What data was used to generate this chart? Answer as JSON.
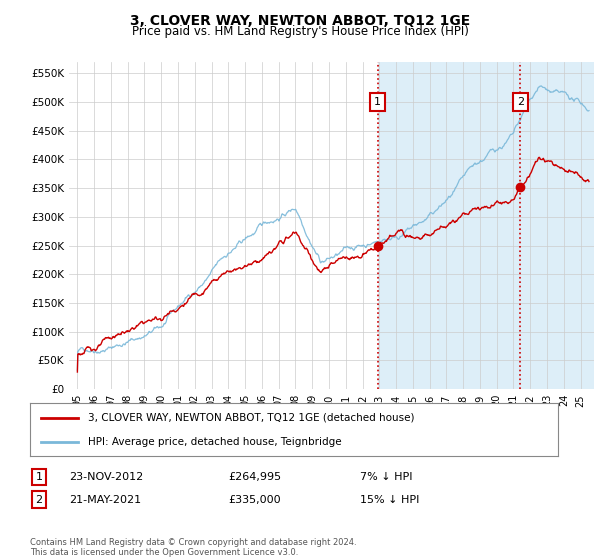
{
  "title": "3, CLOVER WAY, NEWTON ABBOT, TQ12 1GE",
  "subtitle": "Price paid vs. HM Land Registry's House Price Index (HPI)",
  "legend_line1": "3, CLOVER WAY, NEWTON ABBOT, TQ12 1GE (detached house)",
  "legend_line2": "HPI: Average price, detached house, Teignbridge",
  "annotation1_label": "1",
  "annotation1_date": "23-NOV-2012",
  "annotation1_price": "£264,995",
  "annotation1_hpi": "7% ↓ HPI",
  "annotation1_year": 2012.9,
  "annotation1_value": 264995,
  "annotation2_label": "2",
  "annotation2_date": "21-MAY-2021",
  "annotation2_price": "£335,000",
  "annotation2_hpi": "15% ↓ HPI",
  "annotation2_year": 2021.4,
  "annotation2_value": 335000,
  "hpi_color": "#7ab8d9",
  "price_color": "#cc0000",
  "vline_color": "#cc0000",
  "grid_color": "#cccccc",
  "background_color": "#ddeef8",
  "background_color_early": "#ffffff",
  "plot_bg_color": "#ffffff",
  "shade_after_color": "#ddeef8",
  "footer": "Contains HM Land Registry data © Crown copyright and database right 2024.\nThis data is licensed under the Open Government Licence v3.0.",
  "ylim": [
    0,
    570000
  ],
  "yticks": [
    0,
    50000,
    100000,
    150000,
    200000,
    250000,
    300000,
    350000,
    400000,
    450000,
    500000,
    550000
  ],
  "xmin": 1994.5,
  "xmax": 2025.8,
  "shade_start": 2012.9,
  "noise_seed_hpi": 42,
  "noise_seed_price": 123
}
